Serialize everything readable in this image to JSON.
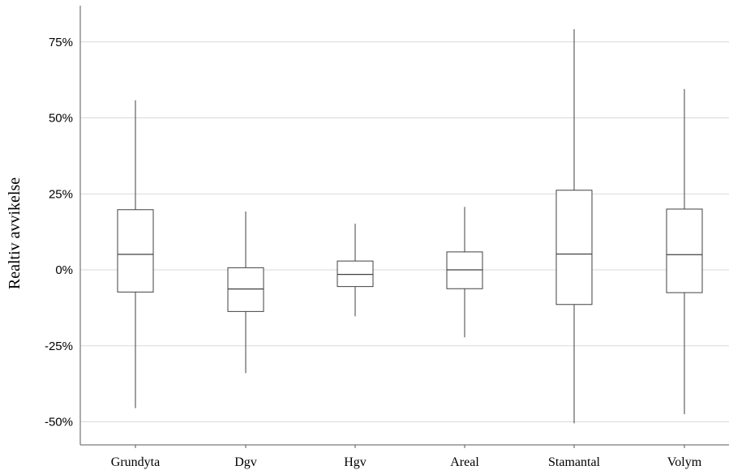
{
  "chart_data": {
    "type": "boxplot",
    "title": "",
    "xlabel": "",
    "ylabel": "Realtiv avvikelse",
    "ylim": [
      -0.58,
      0.875
    ],
    "yticks": [
      {
        "value": 0.75,
        "label": "75%"
      },
      {
        "value": 0.5,
        "label": "50%"
      },
      {
        "value": 0.25,
        "label": "25%"
      },
      {
        "value": 0.0,
        "label": "0%"
      },
      {
        "value": -0.25,
        "label": "-25%"
      },
      {
        "value": -0.5,
        "label": "-50%"
      }
    ],
    "grid": "horizontal",
    "categories": [
      "Grundyta",
      "Dgv",
      "Hgv",
      "Areal",
      "Stamantal",
      "Volym"
    ],
    "boxes": [
      {
        "category": "Grundyta",
        "min": -0.455,
        "q1": -0.073,
        "median": 0.051,
        "q3": 0.198,
        "max": 0.558
      },
      {
        "category": "Dgv",
        "min": -0.34,
        "q1": -0.137,
        "median": -0.063,
        "q3": 0.007,
        "max": 0.192
      },
      {
        "category": "Hgv",
        "min": -0.153,
        "q1": -0.055,
        "median": -0.015,
        "q3": 0.029,
        "max": 0.152
      },
      {
        "category": "Areal",
        "min": -0.222,
        "q1": -0.062,
        "median": 0.0,
        "q3": 0.059,
        "max": 0.207
      },
      {
        "category": "Stamantal",
        "min": -0.505,
        "q1": -0.114,
        "median": 0.052,
        "q3": 0.262,
        "max": 0.792
      },
      {
        "category": "Volym",
        "min": -0.475,
        "q1": -0.075,
        "median": 0.05,
        "q3": 0.2,
        "max": 0.595
      }
    ]
  }
}
